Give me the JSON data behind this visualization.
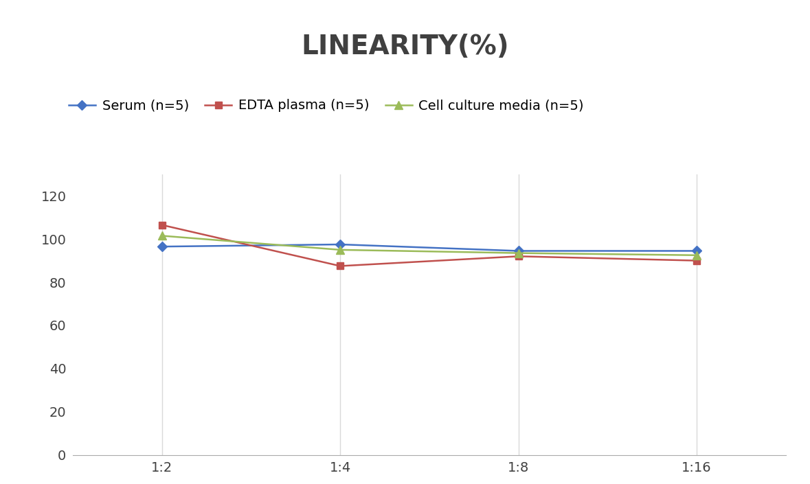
{
  "title": "LINEARITY(%)",
  "x_labels": [
    "1:2",
    "1:4",
    "1:8",
    "1:16"
  ],
  "x_positions": [
    0,
    1,
    2,
    3
  ],
  "series": [
    {
      "label": "Serum (n=5)",
      "values": [
        96.5,
        97.5,
        94.5,
        94.5
      ],
      "color": "#4472C4",
      "marker": "D",
      "marker_size": 7,
      "linewidth": 1.8
    },
    {
      "label": "EDTA plasma (n=5)",
      "values": [
        106.5,
        87.5,
        92.0,
        90.0
      ],
      "color": "#C0504D",
      "marker": "s",
      "marker_size": 7,
      "linewidth": 1.8
    },
    {
      "label": "Cell culture media (n=5)",
      "values": [
        101.5,
        95.0,
        93.5,
        92.5
      ],
      "color": "#9BBB59",
      "marker": "^",
      "marker_size": 8,
      "linewidth": 1.8
    }
  ],
  "ylim": [
    0,
    130
  ],
  "yticks": [
    0,
    20,
    40,
    60,
    80,
    100,
    120
  ],
  "grid_color": "#D9D9D9",
  "background_color": "#FFFFFF",
  "title_fontsize": 28,
  "tick_fontsize": 14,
  "legend_fontsize": 14,
  "title_color": "#404040",
  "tick_color": "#404040"
}
